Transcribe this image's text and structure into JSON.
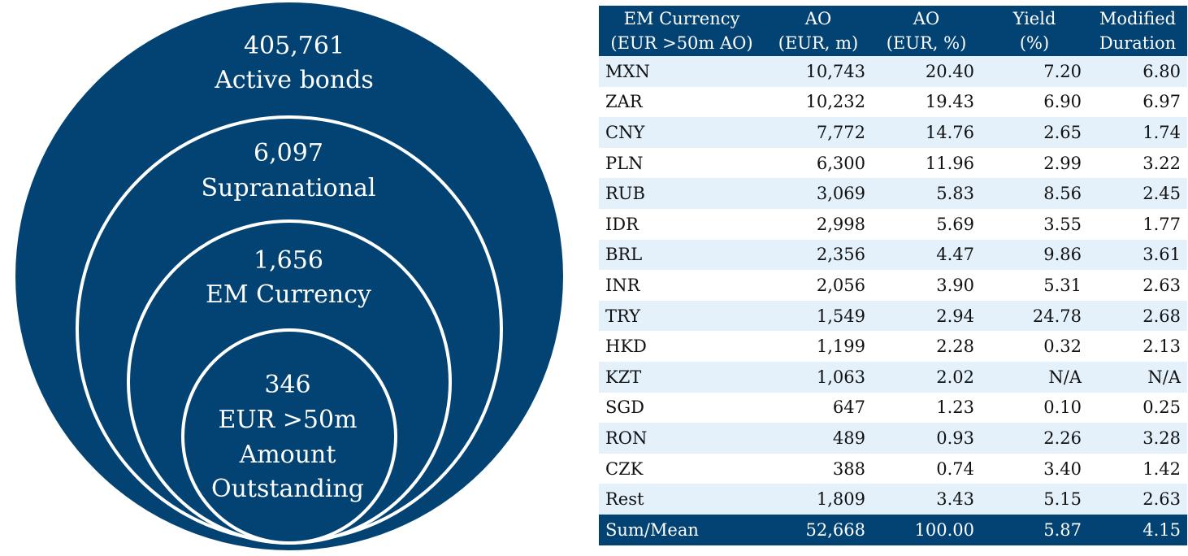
{
  "diagram": {
    "circles": [
      {
        "value": "405,761",
        "label_lines": [
          "Active bonds"
        ]
      },
      {
        "value": "6,097",
        "label_lines": [
          "Supranational"
        ]
      },
      {
        "value": "1,656",
        "label_lines": [
          "EM Currency"
        ]
      },
      {
        "value": "346",
        "label_lines": [
          "EUR >50m",
          "Amount",
          "Outstanding"
        ]
      }
    ],
    "colors": {
      "fill": "#034374",
      "stroke": "#ffffff",
      "text": "#ffffff"
    }
  },
  "table": {
    "headers": [
      [
        "EM Currency",
        "(EUR >50m AO)"
      ],
      [
        "AO",
        "(EUR, m)"
      ],
      [
        "AO",
        "(EUR, %)"
      ],
      [
        "Yield",
        "(%)"
      ],
      [
        "Modified",
        "Duration"
      ]
    ],
    "rows": [
      {
        "currency": "MXN",
        "ao_m": "10,743",
        "ao_pct": "20.40",
        "yield": "7.20",
        "mod_dur": "6.80"
      },
      {
        "currency": "ZAR",
        "ao_m": "10,232",
        "ao_pct": "19.43",
        "yield": "6.90",
        "mod_dur": "6.97"
      },
      {
        "currency": "CNY",
        "ao_m": "7,772",
        "ao_pct": "14.76",
        "yield": "2.65",
        "mod_dur": "1.74"
      },
      {
        "currency": "PLN",
        "ao_m": "6,300",
        "ao_pct": "11.96",
        "yield": "2.99",
        "mod_dur": "3.22"
      },
      {
        "currency": "RUB",
        "ao_m": "3,069",
        "ao_pct": "5.83",
        "yield": "8.56",
        "mod_dur": "2.45"
      },
      {
        "currency": "IDR",
        "ao_m": "2,998",
        "ao_pct": "5.69",
        "yield": "3.55",
        "mod_dur": "1.77"
      },
      {
        "currency": "BRL",
        "ao_m": "2,356",
        "ao_pct": "4.47",
        "yield": "9.86",
        "mod_dur": "3.61"
      },
      {
        "currency": "INR",
        "ao_m": "2,056",
        "ao_pct": "3.90",
        "yield": "5.31",
        "mod_dur": "2.63"
      },
      {
        "currency": "TRY",
        "ao_m": "1,549",
        "ao_pct": "2.94",
        "yield": "24.78",
        "mod_dur": "2.68"
      },
      {
        "currency": "HKD",
        "ao_m": "1,199",
        "ao_pct": "2.28",
        "yield": "0.32",
        "mod_dur": "2.13"
      },
      {
        "currency": "KZT",
        "ao_m": "1,063",
        "ao_pct": "2.02",
        "yield": "N/A",
        "mod_dur": "N/A"
      },
      {
        "currency": "SGD",
        "ao_m": "647",
        "ao_pct": "1.23",
        "yield": "0.10",
        "mod_dur": "0.25"
      },
      {
        "currency": "RON",
        "ao_m": "489",
        "ao_pct": "0.93",
        "yield": "2.26",
        "mod_dur": "3.28"
      },
      {
        "currency": "CZK",
        "ao_m": "388",
        "ao_pct": "0.74",
        "yield": "3.40",
        "mod_dur": "1.42"
      },
      {
        "currency": "Rest",
        "ao_m": "1,809",
        "ao_pct": "3.43",
        "yield": "5.15",
        "mod_dur": "2.63"
      }
    ],
    "footer": {
      "currency": "Sum/Mean",
      "ao_m": "52,668",
      "ao_pct": "100.00",
      "yield": "5.87",
      "mod_dur": "4.15"
    },
    "colors": {
      "header_bg": "#034374",
      "alt_row_bg": "#e4f1fb",
      "row_bg": "#ffffff"
    }
  }
}
